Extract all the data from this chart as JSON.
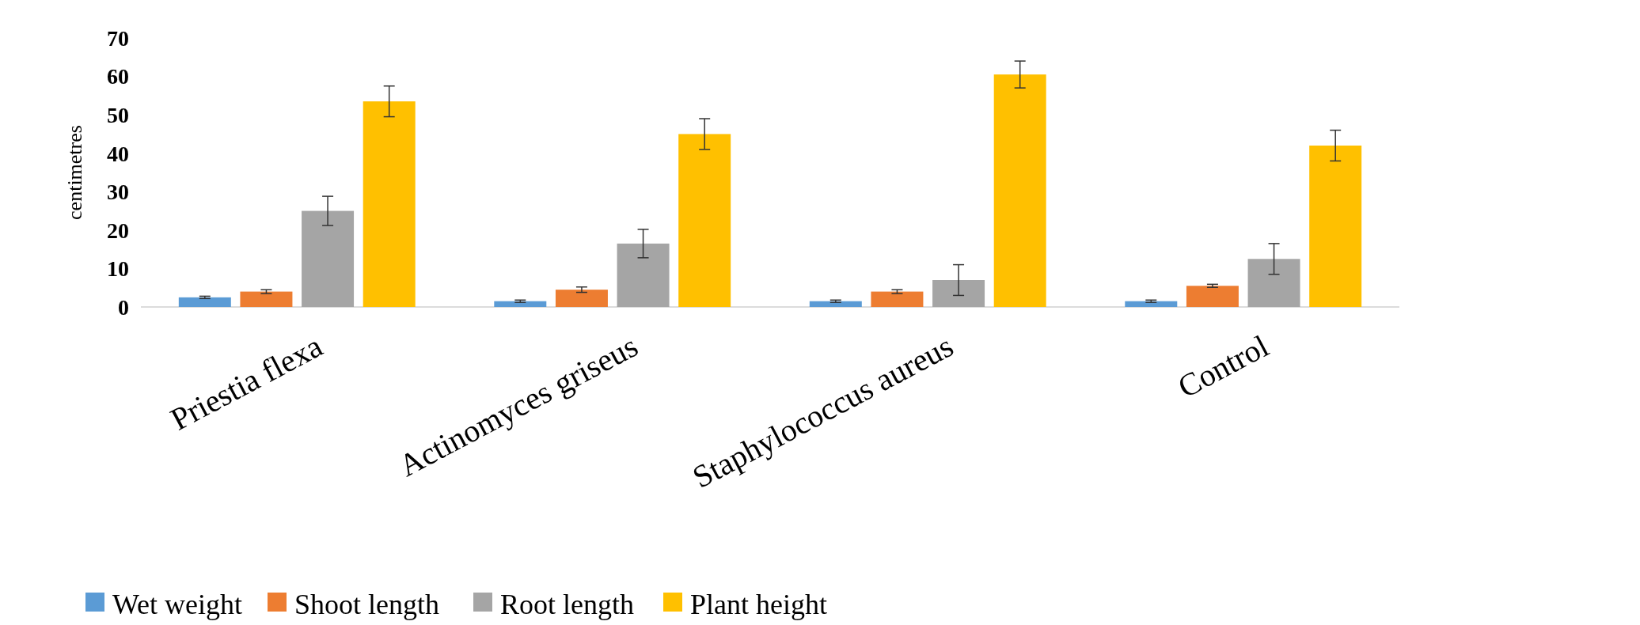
{
  "chart_data": {
    "type": "bar",
    "ylabel": "centimetres",
    "categories": [
      "Priestia flexa",
      "Actinomyces griseus",
      "Staphylococcus aureus",
      "Control"
    ],
    "series": [
      {
        "name": "Wet weight",
        "color": "#5b9bd5",
        "values": [
          2.5,
          1.5,
          1.5,
          1.5
        ],
        "errors": [
          0.3,
          0.3,
          0.3,
          0.3
        ]
      },
      {
        "name": "Shoot length",
        "color": "#ed7d31",
        "values": [
          4,
          4.5,
          4,
          5.5
        ],
        "errors": [
          0.5,
          0.7,
          0.5,
          0.4
        ]
      },
      {
        "name": "Root length",
        "color": "#a5a5a5",
        "values": [
          25,
          16.5,
          7,
          12.5
        ],
        "errors": [
          3.8,
          3.7,
          4,
          4
        ]
      },
      {
        "name": "Plant height",
        "color": "#ffc000",
        "values": [
          53.5,
          45,
          60.5,
          42
        ],
        "errors": [
          4,
          4,
          3.5,
          4
        ]
      }
    ],
    "ylim": [
      0,
      70
    ],
    "yticks": [
      0,
      10,
      20,
      30,
      40,
      50,
      60,
      70
    ],
    "grid": false,
    "legend": "bottom"
  }
}
